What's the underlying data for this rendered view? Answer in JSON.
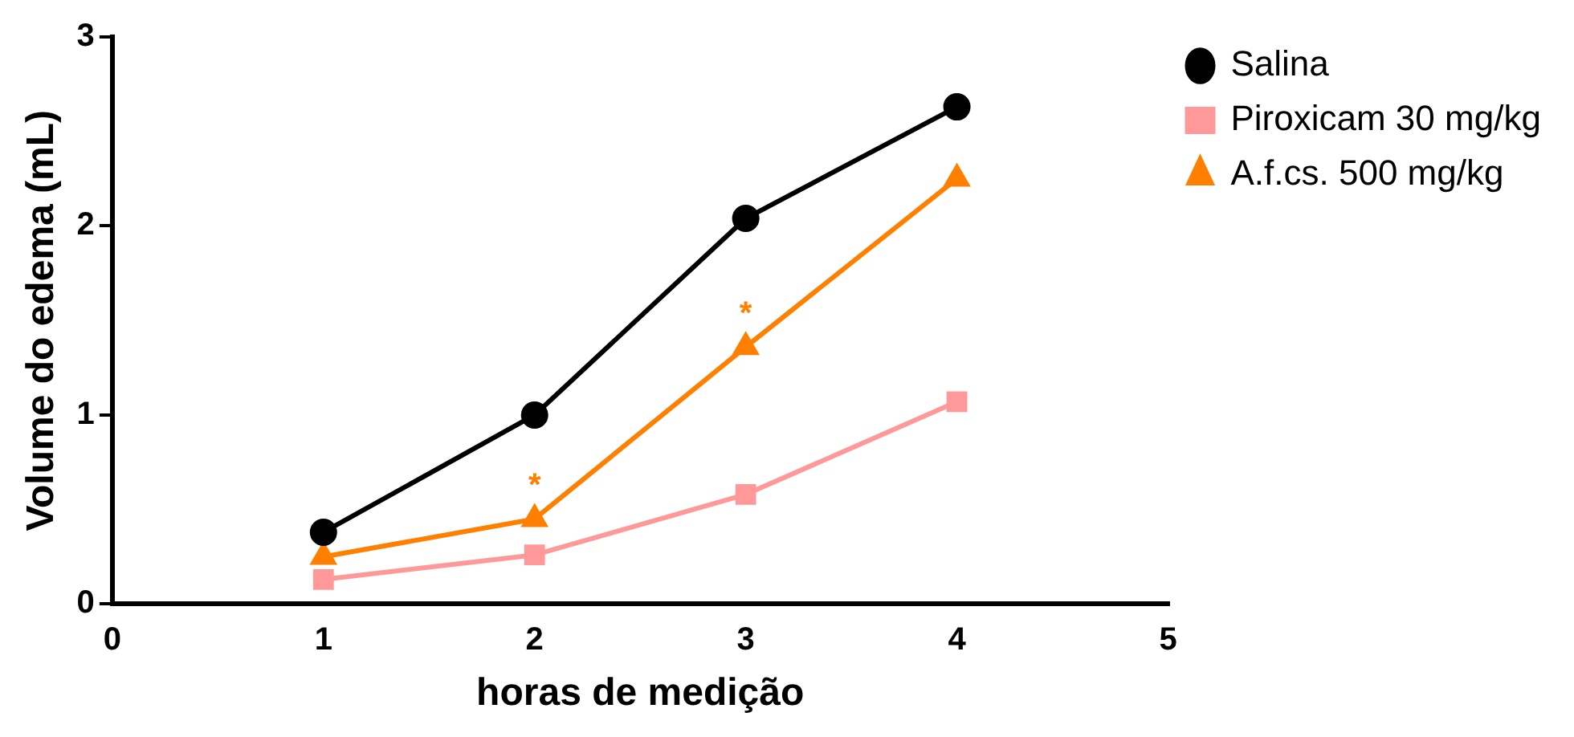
{
  "chart_data": {
    "type": "line",
    "xlabel": "horas de medição",
    "ylabel": "Volume do edema (mL)",
    "x": [
      1,
      2,
      3,
      4
    ],
    "series": [
      {
        "name": "Salina",
        "color": "#000000",
        "marker": "circle",
        "values": [
          0.38,
          1.0,
          2.04,
          2.63
        ]
      },
      {
        "name": "Piroxicam 30 mg/kg",
        "color": "#ff9999",
        "marker": "square",
        "values": [
          0.13,
          0.26,
          0.58,
          1.07
        ]
      },
      {
        "name": "A.f.cs. 500 mg/kg",
        "color": "#ff8000",
        "marker": "triangle",
        "values": [
          0.25,
          0.45,
          1.36,
          2.25
        ]
      }
    ],
    "xlim": [
      0,
      5
    ],
    "xticks": [
      0,
      1,
      2,
      3,
      4,
      5
    ],
    "ylim": [
      0,
      3
    ],
    "yticks": [
      0,
      1,
      2,
      3
    ],
    "grid": false,
    "legend": "top right",
    "line_style": "solid",
    "annotations": [
      {
        "text": "*",
        "x": 2,
        "y": 0.45
      },
      {
        "text": "*",
        "x": 3,
        "y": 1.36
      }
    ]
  }
}
